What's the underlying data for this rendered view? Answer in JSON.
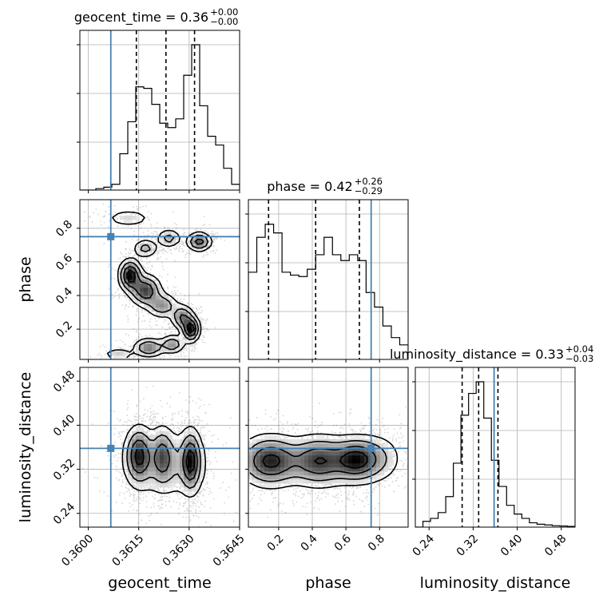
{
  "chart_data": {
    "type": "corner",
    "truth_color": "#4682b4",
    "grid": true,
    "parameters": [
      {
        "name": "geocent_time",
        "xlabel": "geocent_time",
        "range": [
          0.35975,
          0.3645
        ],
        "ticks": [
          0.36,
          0.3615,
          0.363,
          0.3645
        ],
        "tick_labels": [
          "0.3600",
          "0.3615",
          "0.3630",
          "0.3645"
        ],
        "truth": 0.36067,
        "title_main": "geocent_time = 0.36",
        "title_sup": "+0.00",
        "title_sub": "−0.00",
        "quantiles": [
          0.36143,
          0.36231,
          0.36316
        ],
        "histogram": [
          0,
          0,
          0.01,
          0.02,
          0.04,
          0.25,
          0.47,
          0.71,
          0.7,
          0.59,
          0.46,
          0.43,
          0.49,
          0.79,
          1.0,
          0.58,
          0.37,
          0.31,
          0.15,
          0.04
        ]
      },
      {
        "name": "phase",
        "ylabel": "phase",
        "xlabel": "phase",
        "range": [
          0.02,
          0.97
        ],
        "ticks": [
          0.2,
          0.4,
          0.6,
          0.8
        ],
        "tick_labels": [
          "0.2",
          "0.4",
          "0.6",
          "0.8"
        ],
        "truth": 0.75,
        "title_main": "phase = 0.42",
        "title_sup": "+0.26",
        "title_sub": "−0.29",
        "quantiles": [
          0.14,
          0.42,
          0.68
        ],
        "histogram": [
          0.6,
          0.84,
          0.93,
          0.87,
          0.6,
          0.58,
          0.57,
          0.62,
          0.72,
          0.84,
          0.72,
          0.68,
          0.72,
          0.68,
          0.46,
          0.36,
          0.23,
          0.15,
          0.1
        ]
      },
      {
        "name": "luminosity_distance",
        "ylabel": "luminosity_distance",
        "xlabel": "luminosity_distance",
        "range": [
          0.215,
          0.505
        ],
        "ticks": [
          0.24,
          0.32,
          0.4,
          0.48
        ],
        "tick_labels": [
          "0.24",
          "0.32",
          "0.40",
          "0.48"
        ],
        "truth": 0.358,
        "title_main": "luminosity_distance = 0.33",
        "title_sup": "+0.04",
        "title_sub": "−0.03",
        "quantiles": [
          0.3,
          0.33,
          0.365
        ],
        "histogram": [
          0,
          0.04,
          0.06,
          0.1,
          0.21,
          0.44,
          0.77,
          0.92,
          1.0,
          0.75,
          0.46,
          0.28,
          0.15,
          0.09,
          0.06,
          0.03,
          0.02,
          0.015,
          0.01,
          0.008,
          0.005
        ]
      }
    ],
    "pairs": [
      {
        "x": "geocent_time",
        "y": "phase",
        "clusters": [
          {
            "cx": 0.36125,
            "cy": 0.52,
            "sx": 0.00018,
            "sy": 0.05,
            "w": 1.0
          },
          {
            "cx": 0.3617,
            "cy": 0.43,
            "sx": 0.00025,
            "sy": 0.05,
            "w": 0.8
          },
          {
            "cx": 0.3622,
            "cy": 0.34,
            "sx": 0.00025,
            "sy": 0.04,
            "w": 0.5
          },
          {
            "cx": 0.36305,
            "cy": 0.2,
            "sx": 0.00014,
            "sy": 0.04,
            "w": 1.0
          },
          {
            "cx": 0.3628,
            "cy": 0.27,
            "sx": 0.00018,
            "sy": 0.04,
            "w": 0.6
          },
          {
            "cx": 0.3618,
            "cy": 0.09,
            "sx": 0.00025,
            "sy": 0.03,
            "w": 0.6
          },
          {
            "cx": 0.3625,
            "cy": 0.11,
            "sx": 0.0002,
            "sy": 0.03,
            "w": 0.5
          },
          {
            "cx": 0.3617,
            "cy": 0.68,
            "sx": 0.0002,
            "sy": 0.03,
            "w": 0.4
          },
          {
            "cx": 0.3624,
            "cy": 0.74,
            "sx": 0.0002,
            "sy": 0.03,
            "w": 0.4
          },
          {
            "cx": 0.3633,
            "cy": 0.72,
            "sx": 0.0002,
            "sy": 0.03,
            "w": 0.7
          },
          {
            "cx": 0.3612,
            "cy": 0.86,
            "sx": 0.0004,
            "sy": 0.03,
            "w": 0.25
          },
          {
            "cx": 0.3609,
            "cy": 0.05,
            "sx": 0.00025,
            "sy": 0.02,
            "w": 0.3
          }
        ]
      },
      {
        "x": "geocent_time",
        "y": "luminosity_distance",
        "clusters": [
          {
            "cx": 0.3615,
            "cy": 0.345,
            "sx": 0.00022,
            "sy": 0.028,
            "w": 1.0
          },
          {
            "cx": 0.3622,
            "cy": 0.345,
            "sx": 0.00018,
            "sy": 0.028,
            "w": 0.6
          },
          {
            "cx": 0.36305,
            "cy": 0.335,
            "sx": 0.00016,
            "sy": 0.03,
            "w": 1.0
          },
          {
            "cx": 0.3624,
            "cy": 0.33,
            "sx": 0.0007,
            "sy": 0.035,
            "w": 0.4
          }
        ]
      },
      {
        "x": "phase",
        "y": "luminosity_distance",
        "clusters": [
          {
            "cx": 0.15,
            "cy": 0.335,
            "sx": 0.1,
            "sy": 0.025,
            "w": 1.0
          },
          {
            "cx": 0.44,
            "cy": 0.335,
            "sx": 0.1,
            "sy": 0.025,
            "w": 0.9
          },
          {
            "cx": 0.66,
            "cy": 0.337,
            "sx": 0.08,
            "sy": 0.022,
            "w": 1.0
          },
          {
            "cx": 0.8,
            "cy": 0.34,
            "sx": 0.08,
            "sy": 0.025,
            "w": 0.3
          }
        ]
      }
    ]
  }
}
